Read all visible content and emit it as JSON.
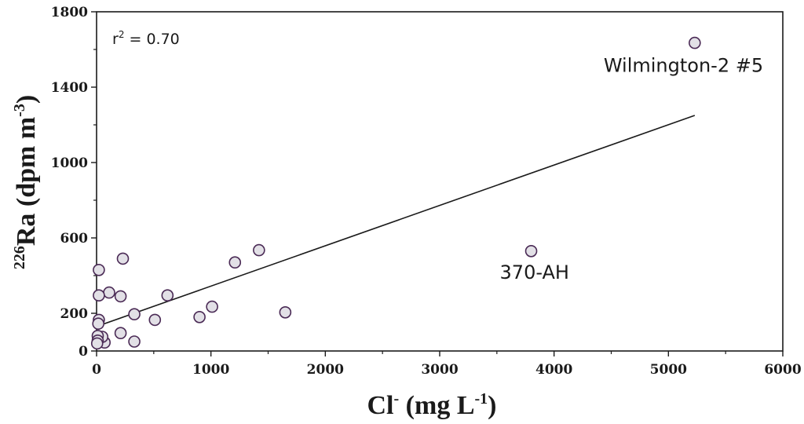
{
  "chart_data": {
    "type": "scatter",
    "title": "",
    "xlabel": {
      "base": "Cl",
      "sup": "-",
      "units_pre": "(mg L",
      "units_sup": "-1",
      "units_post": ")"
    },
    "ylabel": {
      "sup": "226",
      "base": "Ra",
      "units_pre": "(dpm m",
      "units_sup": "-3",
      "units_post": ")"
    },
    "xlim": [
      0,
      6000
    ],
    "ylim": [
      0,
      1800
    ],
    "x_ticks": [
      0,
      1000,
      2000,
      3000,
      4000,
      5000,
      6000
    ],
    "y_ticks": [
      0,
      200,
      600,
      1000,
      1400,
      1800
    ],
    "grid": false,
    "r_squared": {
      "prefix": "r",
      "sup": "2",
      "text": " = 0.70"
    },
    "marker_fill": "#e2e0e6",
    "marker_stroke": "#4a2a55",
    "points": [
      {
        "x": 5230,
        "y": 1635,
        "label": "Wilmington-2 #5"
      },
      {
        "x": 3800,
        "y": 530,
        "label": "370-AH"
      },
      {
        "x": 1650,
        "y": 205,
        "label": ""
      },
      {
        "x": 1420,
        "y": 535,
        "label": ""
      },
      {
        "x": 1210,
        "y": 470,
        "label": ""
      },
      {
        "x": 1010,
        "y": 235,
        "label": ""
      },
      {
        "x": 900,
        "y": 180,
        "label": ""
      },
      {
        "x": 620,
        "y": 295,
        "label": ""
      },
      {
        "x": 510,
        "y": 165,
        "label": ""
      },
      {
        "x": 330,
        "y": 195,
        "label": ""
      },
      {
        "x": 330,
        "y": 50,
        "label": ""
      },
      {
        "x": 230,
        "y": 490,
        "label": ""
      },
      {
        "x": 210,
        "y": 290,
        "label": ""
      },
      {
        "x": 210,
        "y": 95,
        "label": ""
      },
      {
        "x": 110,
        "y": 310,
        "label": ""
      },
      {
        "x": 70,
        "y": 45,
        "label": ""
      },
      {
        "x": 50,
        "y": 75,
        "label": ""
      },
      {
        "x": 20,
        "y": 430,
        "label": ""
      },
      {
        "x": 20,
        "y": 295,
        "label": ""
      },
      {
        "x": 20,
        "y": 165,
        "label": ""
      },
      {
        "x": 15,
        "y": 145,
        "label": ""
      },
      {
        "x": 10,
        "y": 80,
        "label": ""
      },
      {
        "x": 10,
        "y": 55,
        "label": ""
      },
      {
        "x": 5,
        "y": 40,
        "label": ""
      }
    ],
    "fit_line": {
      "x": [
        0,
        5230
      ],
      "y": [
        130,
        1250
      ]
    }
  }
}
